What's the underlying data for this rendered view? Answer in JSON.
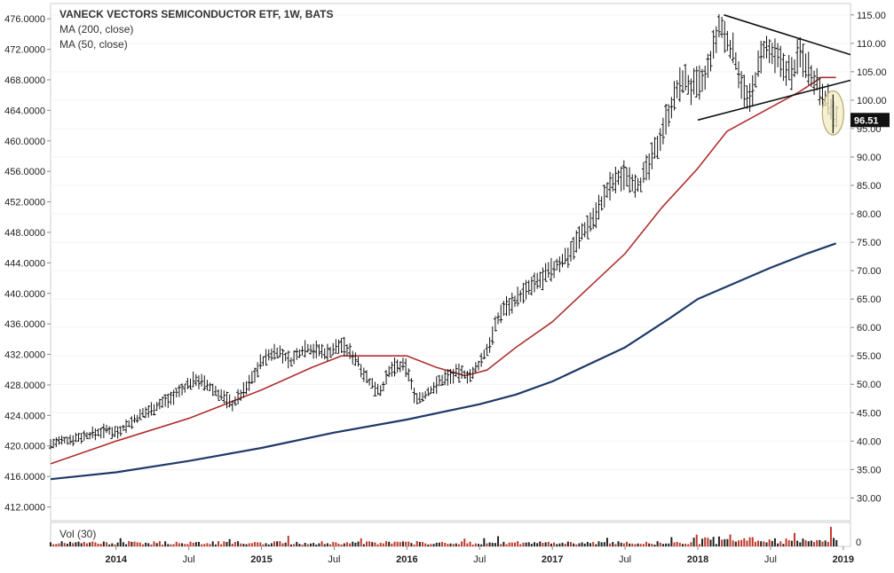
{
  "chart_data": {
    "type": "line",
    "title": "VANECK VECTORS SEMICONDUCTOR ETF, 1W, BATS",
    "legend": [
      {
        "label": "MA (200, close)",
        "color": "#1f3a68"
      },
      {
        "label": "MA (50, close)",
        "color": "#b03030"
      }
    ],
    "volume_label": "Vol (30)",
    "last_price_label": "96.51",
    "volume_axis_label": "0",
    "x_ticks": [
      "2014",
      "Jul",
      "2015",
      "Jul",
      "2016",
      "Jul",
      "2017",
      "Jul",
      "2018",
      "Jul",
      "2019"
    ],
    "left_axis": {
      "ticks": [
        "476.0000",
        "472.0000",
        "468.0000",
        "464.0000",
        "460.0000",
        "456.0000",
        "452.0000",
        "448.0000",
        "444.0000",
        "440.0000",
        "436.0000",
        "432.0000",
        "428.0000",
        "424.0000",
        "420.0000",
        "416.0000",
        "412.0000"
      ],
      "ylim": [
        410.2,
        478.0
      ]
    },
    "right_axis": {
      "ticks": [
        "115.00",
        "110.00",
        "105.00",
        "100.00",
        "95.00",
        "90.00",
        "85.00",
        "80.00",
        "75.00",
        "70.00",
        "65.00",
        "60.00",
        "55.00",
        "50.00",
        "45.00",
        "40.00",
        "35.00",
        "30.00"
      ],
      "ylim": [
        26.0,
        117.0
      ]
    },
    "xlim": [
      2013.55,
      2019.05
    ],
    "price_path": [
      [
        2013.55,
        39.5
      ],
      [
        2013.8,
        41.0
      ],
      [
        2013.95,
        42.0
      ],
      [
        2014.0,
        41.5
      ],
      [
        2014.2,
        45.0
      ],
      [
        2014.4,
        48.0
      ],
      [
        2014.55,
        51.0
      ],
      [
        2014.7,
        48.5
      ],
      [
        2014.8,
        46.5
      ],
      [
        2014.9,
        49.5
      ],
      [
        2015.0,
        54.0
      ],
      [
        2015.1,
        56.0
      ],
      [
        2015.2,
        54.0
      ],
      [
        2015.3,
        56.5
      ],
      [
        2015.45,
        55.5
      ],
      [
        2015.55,
        57.0
      ],
      [
        2015.65,
        54.5
      ],
      [
        2015.75,
        50.0
      ],
      [
        2015.82,
        49.0
      ],
      [
        2015.9,
        53.0
      ],
      [
        2016.0,
        53.0
      ],
      [
        2016.05,
        48.0
      ],
      [
        2016.1,
        47.5
      ],
      [
        2016.25,
        51.0
      ],
      [
        2016.35,
        52.0
      ],
      [
        2016.45,
        51.5
      ],
      [
        2016.55,
        56.0
      ],
      [
        2016.65,
        63.0
      ],
      [
        2016.8,
        66.0
      ],
      [
        2016.95,
        69.0
      ],
      [
        2017.1,
        72.5
      ],
      [
        2017.2,
        76.5
      ],
      [
        2017.3,
        80.0
      ],
      [
        2017.4,
        85.0
      ],
      [
        2017.5,
        87.0
      ],
      [
        2017.6,
        85.0
      ],
      [
        2017.7,
        90.5
      ],
      [
        2017.8,
        98.0
      ],
      [
        2017.9,
        104.0
      ],
      [
        2017.95,
        102.0
      ],
      [
        2018.05,
        103.5
      ],
      [
        2018.15,
        113.0
      ],
      [
        2018.25,
        108.0
      ],
      [
        2018.35,
        99.0
      ],
      [
        2018.45,
        109.0
      ],
      [
        2018.55,
        107.0
      ],
      [
        2018.65,
        104.5
      ],
      [
        2018.7,
        108.5
      ],
      [
        2018.8,
        104.0
      ],
      [
        2018.9,
        99.5
      ],
      [
        2018.95,
        96.5
      ]
    ],
    "ma200": [
      [
        2013.55,
        33.3
      ],
      [
        2014.0,
        34.5
      ],
      [
        2014.5,
        36.5
      ],
      [
        2015.0,
        38.8
      ],
      [
        2015.5,
        41.5
      ],
      [
        2016.0,
        43.8
      ],
      [
        2016.5,
        46.5
      ],
      [
        2016.75,
        48.2
      ],
      [
        2017.0,
        50.5
      ],
      [
        2017.5,
        56.5
      ],
      [
        2017.8,
        61.5
      ],
      [
        2018.0,
        65.0
      ],
      [
        2018.5,
        70.5
      ],
      [
        2018.75,
        73.0
      ],
      [
        2018.95,
        74.8
      ]
    ],
    "ma50": [
      [
        2013.55,
        36.0
      ],
      [
        2014.0,
        40.0
      ],
      [
        2014.5,
        44.0
      ],
      [
        2014.75,
        46.5
      ],
      [
        2015.0,
        49.0
      ],
      [
        2015.35,
        53.0
      ],
      [
        2015.55,
        55.0
      ],
      [
        2015.75,
        55.0
      ],
      [
        2016.0,
        55.0
      ],
      [
        2016.2,
        53.0
      ],
      [
        2016.4,
        51.5
      ],
      [
        2016.55,
        52.5
      ],
      [
        2016.75,
        56.5
      ],
      [
        2017.0,
        61.0
      ],
      [
        2017.25,
        67.0
      ],
      [
        2017.5,
        73.0
      ],
      [
        2017.75,
        81.0
      ],
      [
        2018.0,
        88.0
      ],
      [
        2018.2,
        94.5
      ],
      [
        2018.45,
        98.0
      ],
      [
        2018.7,
        101.5
      ],
      [
        2018.85,
        104.0
      ],
      [
        2018.95,
        104.0
      ]
    ],
    "trendlines": [
      {
        "from": [
          2018.18,
          115.0
        ],
        "to": [
          2019.05,
          108.0
        ]
      },
      {
        "from": [
          2018.0,
          96.5
        ],
        "to": [
          2019.05,
          103.5
        ]
      }
    ],
    "highlight": {
      "x": 2018.93,
      "y_low": 94.5,
      "y_high": 101.0
    }
  }
}
